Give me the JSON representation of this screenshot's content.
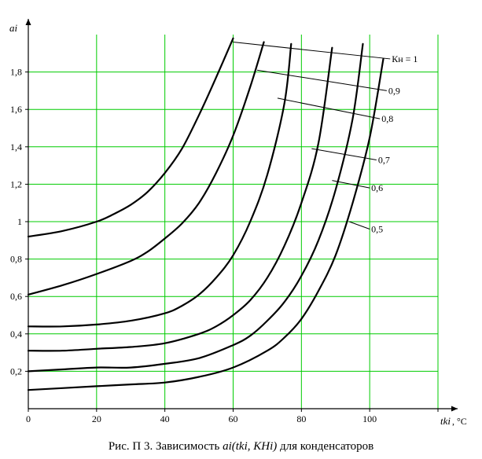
{
  "chart_data": {
    "type": "line",
    "ylabel": "ai",
    "xlabel": "tki",
    "xunit": ", °C",
    "xlim": [
      0,
      120
    ],
    "ylim": [
      0,
      2.0
    ],
    "x_ticks": [
      "0",
      "20",
      "40",
      "60",
      "80",
      "100"
    ],
    "y_ticks": [
      "0,2",
      "0,4",
      "0,6",
      "0,8",
      "1",
      "1,2",
      "1,4",
      "1,6",
      "1,8"
    ],
    "grid": true,
    "grid_color": "#00cc00",
    "series": [
      {
        "name": "Кн = 1",
        "x": [
          0,
          10,
          20,
          25,
          30,
          35,
          40,
          45,
          50,
          55,
          60
        ],
        "y": [
          0.92,
          0.95,
          1.0,
          1.04,
          1.09,
          1.16,
          1.26,
          1.39,
          1.57,
          1.77,
          1.98
        ]
      },
      {
        "name": "0,9",
        "x": [
          0,
          10,
          20,
          30,
          35,
          40,
          45,
          50,
          55,
          60,
          65,
          69
        ],
        "y": [
          0.61,
          0.66,
          0.72,
          0.79,
          0.84,
          0.91,
          0.99,
          1.1,
          1.26,
          1.46,
          1.72,
          1.96
        ]
      },
      {
        "name": "0,8",
        "x": [
          0,
          10,
          20,
          30,
          40,
          45,
          50,
          55,
          60,
          65,
          70,
          75,
          77
        ],
        "y": [
          0.44,
          0.44,
          0.45,
          0.47,
          0.51,
          0.55,
          0.61,
          0.7,
          0.82,
          1.0,
          1.25,
          1.63,
          1.95
        ]
      },
      {
        "name": "0,7",
        "x": [
          0,
          10,
          20,
          30,
          40,
          50,
          55,
          60,
          65,
          70,
          75,
          80,
          85,
          89
        ],
        "y": [
          0.31,
          0.31,
          0.32,
          0.33,
          0.35,
          0.4,
          0.44,
          0.5,
          0.58,
          0.7,
          0.87,
          1.1,
          1.42,
          1.93
        ]
      },
      {
        "name": "0,6",
        "x": [
          0,
          10,
          20,
          30,
          40,
          50,
          60,
          65,
          70,
          75,
          80,
          85,
          90,
          95,
          98
        ],
        "y": [
          0.2,
          0.21,
          0.22,
          0.22,
          0.24,
          0.27,
          0.34,
          0.39,
          0.47,
          0.57,
          0.71,
          0.9,
          1.17,
          1.55,
          1.95
        ]
      },
      {
        "name": "0,5",
        "x": [
          0,
          10,
          20,
          30,
          40,
          50,
          60,
          70,
          75,
          80,
          85,
          90,
          95,
          100,
          104
        ],
        "y": [
          0.1,
          0.11,
          0.12,
          0.13,
          0.14,
          0.17,
          0.22,
          0.31,
          0.38,
          0.48,
          0.63,
          0.82,
          1.1,
          1.45,
          1.87
        ]
      }
    ],
    "label_leaders": [
      {
        "from": [
          60,
          1.96
        ],
        "to": [
          106,
          1.87
        ]
      },
      {
        "from": [
          67,
          1.81
        ],
        "to": [
          105,
          1.7
        ]
      },
      {
        "from": [
          73,
          1.66
        ],
        "to": [
          103,
          1.55
        ]
      },
      {
        "from": [
          83,
          1.39
        ],
        "to": [
          102,
          1.33
        ]
      },
      {
        "from": [
          89,
          1.22
        ],
        "to": [
          100,
          1.18
        ]
      },
      {
        "from": [
          94,
          1.0
        ],
        "to": [
          100,
          0.96
        ]
      }
    ]
  },
  "caption": {
    "prefix": "Рис. П   3.  Зависимость",
    "func": "ai(tki, KHi)",
    "suffix": "для конденсаторов"
  }
}
